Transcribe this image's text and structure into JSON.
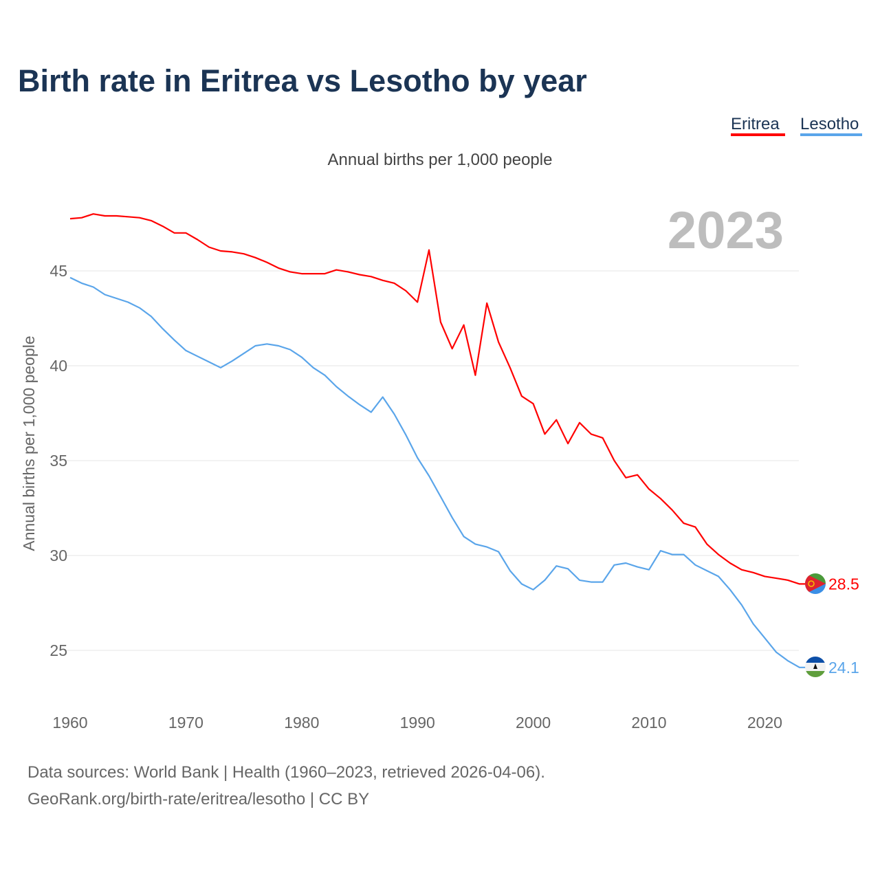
{
  "chart_data": {
    "type": "line",
    "title": "Birth rate in Eritrea vs Lesotho by year",
    "subtitle": "Annual births per 1,000 people",
    "ylabel": "Annual births per 1,000 people",
    "xlabel": "",
    "year_label": "2023",
    "xlim": [
      1960,
      2023
    ],
    "ylim": [
      22.5,
      48.5
    ],
    "x_ticks": [
      1960,
      1970,
      1980,
      1990,
      2000,
      2010,
      2020
    ],
    "y_ticks": [
      25,
      30,
      35,
      40,
      45
    ],
    "grid": true,
    "legend_position": "top-right",
    "x": [
      1960,
      1961,
      1962,
      1963,
      1964,
      1965,
      1966,
      1967,
      1968,
      1969,
      1970,
      1971,
      1972,
      1973,
      1974,
      1975,
      1976,
      1977,
      1978,
      1979,
      1980,
      1981,
      1982,
      1983,
      1984,
      1985,
      1986,
      1987,
      1988,
      1989,
      1990,
      1991,
      1992,
      1993,
      1994,
      1995,
      1996,
      1997,
      1998,
      1999,
      2000,
      2001,
      2002,
      2003,
      2004,
      2005,
      2006,
      2007,
      2008,
      2009,
      2010,
      2011,
      2012,
      2013,
      2014,
      2015,
      2016,
      2017,
      2018,
      2019,
      2020,
      2021,
      2022,
      2023
    ],
    "series": [
      {
        "name": "Eritrea",
        "color": "#ff0000",
        "end_label": "28.5",
        "values": [
          47.75,
          47.8,
          48.0,
          47.9,
          47.9,
          47.85,
          47.8,
          47.65,
          47.35,
          47.0,
          47.0,
          46.65,
          46.25,
          46.05,
          46.0,
          45.9,
          45.7,
          45.45,
          45.15,
          44.95,
          44.85,
          44.85,
          44.85,
          45.05,
          44.95,
          44.8,
          44.7,
          44.5,
          44.35,
          43.95,
          43.35,
          46.1,
          42.3,
          40.9,
          42.15,
          39.5,
          43.3,
          41.25,
          39.9,
          38.4,
          38.0,
          36.4,
          37.15,
          35.9,
          37.0,
          36.4,
          36.2,
          35.0,
          34.1,
          34.25,
          33.5,
          33.0,
          32.4,
          31.7,
          31.5,
          30.6,
          30.05,
          29.6,
          29.25,
          29.1,
          28.9,
          28.8,
          28.7,
          28.5
        ]
      },
      {
        "name": "Lesotho",
        "color": "#5aa5ea",
        "end_label": "24.1",
        "values": [
          44.65,
          44.35,
          44.15,
          43.75,
          43.55,
          43.35,
          43.05,
          42.6,
          41.95,
          41.35,
          40.8,
          40.5,
          40.2,
          39.9,
          40.25,
          40.65,
          41.05,
          41.15,
          41.05,
          40.85,
          40.45,
          39.9,
          39.5,
          38.9,
          38.4,
          37.95,
          37.55,
          38.35,
          37.45,
          36.35,
          35.15,
          34.2,
          33.1,
          32.0,
          31.0,
          30.6,
          30.45,
          30.2,
          29.2,
          28.5,
          28.2,
          28.7,
          29.45,
          29.3,
          28.7,
          28.6,
          28.6,
          29.5,
          29.6,
          29.4,
          29.25,
          30.25,
          30.05,
          30.05,
          29.5,
          29.2,
          28.9,
          28.2,
          27.4,
          26.4,
          25.65,
          24.9,
          24.45,
          24.1
        ]
      }
    ]
  },
  "footer": {
    "line1": "Data sources: World Bank | Health (1960–2023, retrieved 2026-04-06).",
    "line2": "GeoRank.org/birth-rate/eritrea/lesotho | CC BY"
  }
}
